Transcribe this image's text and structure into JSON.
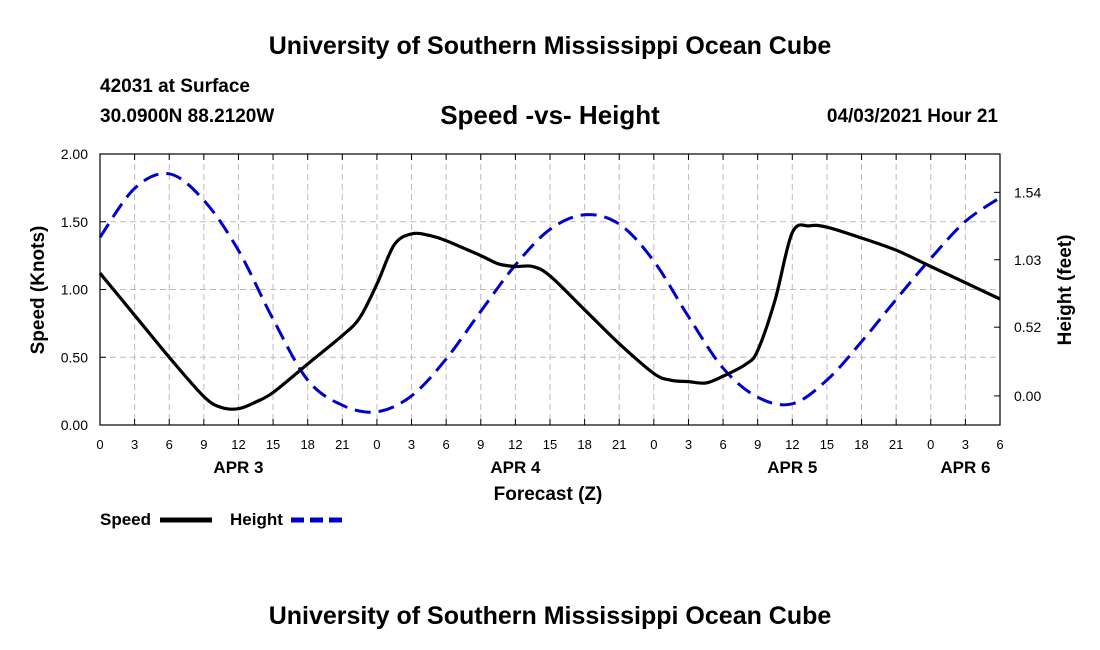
{
  "header": {
    "title": "University of Southern Mississippi Ocean Cube",
    "station": "42031 at Surface",
    "coords": "30.0900N  88.2120W",
    "chart_title": "Speed -vs- Height",
    "datetime": "04/03/2021 Hour 21"
  },
  "footer": {
    "title": "University of Southern Mississippi Ocean Cube"
  },
  "legend": {
    "speed": "Speed",
    "height": "Height"
  },
  "colors": {
    "speed": "#000000",
    "height": "#0000cc",
    "grid": "#bbbbbb"
  },
  "chart_data": {
    "type": "line",
    "title": "Speed -vs- Height",
    "xlabel": "Forecast (Z)",
    "ylabel": "Speed (Knots)",
    "ylabel2": "Height (feet)",
    "x_range": [
      0,
      78
    ],
    "ylim": [
      0,
      2.0
    ],
    "y2lim": [
      -0.22,
      1.83
    ],
    "y_ticks": [
      "0.00",
      "0.50",
      "1.00",
      "1.50",
      "2.00"
    ],
    "y2_ticks": [
      {
        "value": 0.0,
        "label": "0.00"
      },
      {
        "value": 0.52,
        "label": "0.52"
      },
      {
        "value": 1.03,
        "label": "1.03"
      },
      {
        "value": 1.54,
        "label": "1.54"
      }
    ],
    "x_ticks": [
      {
        "hour": 0,
        "label": "0"
      },
      {
        "hour": 3,
        "label": "3"
      },
      {
        "hour": 6,
        "label": "6"
      },
      {
        "hour": 9,
        "label": "9"
      },
      {
        "hour": 12,
        "label": "12"
      },
      {
        "hour": 15,
        "label": "15"
      },
      {
        "hour": 18,
        "label": "18"
      },
      {
        "hour": 21,
        "label": "21"
      },
      {
        "hour": 24,
        "label": "0"
      },
      {
        "hour": 27,
        "label": "3"
      },
      {
        "hour": 30,
        "label": "6"
      },
      {
        "hour": 33,
        "label": "9"
      },
      {
        "hour": 36,
        "label": "12"
      },
      {
        "hour": 39,
        "label": "15"
      },
      {
        "hour": 42,
        "label": "18"
      },
      {
        "hour": 45,
        "label": "21"
      },
      {
        "hour": 48,
        "label": "0"
      },
      {
        "hour": 51,
        "label": "3"
      },
      {
        "hour": 54,
        "label": "6"
      },
      {
        "hour": 57,
        "label": "9"
      },
      {
        "hour": 60,
        "label": "12"
      },
      {
        "hour": 63,
        "label": "15"
      },
      {
        "hour": 66,
        "label": "18"
      },
      {
        "hour": 69,
        "label": "21"
      },
      {
        "hour": 72,
        "label": "0"
      },
      {
        "hour": 75,
        "label": "3"
      },
      {
        "hour": 78,
        "label": "6"
      }
    ],
    "day_labels": [
      {
        "hour": 12,
        "label": "APR 3"
      },
      {
        "hour": 36,
        "label": "APR 4"
      },
      {
        "hour": 60,
        "label": "APR 5"
      },
      {
        "hour": 75,
        "label": "APR 6"
      }
    ],
    "series": [
      {
        "name": "Speed",
        "axis": "left",
        "style": "solid",
        "x": [
          0,
          3,
          6,
          9,
          10.5,
          12,
          13.5,
          15,
          18,
          21,
          22.5,
          24,
          25.5,
          27,
          28.5,
          30,
          33,
          34.5,
          36,
          37.5,
          39,
          42,
          45,
          48,
          49.5,
          51,
          52.5,
          54,
          56,
          57,
          58.5,
          60,
          61.5,
          63,
          66,
          69,
          72,
          75,
          78
        ],
        "values": [
          1.12,
          0.81,
          0.5,
          0.21,
          0.13,
          0.12,
          0.17,
          0.24,
          0.45,
          0.66,
          0.79,
          1.04,
          1.33,
          1.41,
          1.4,
          1.36,
          1.25,
          1.19,
          1.17,
          1.17,
          1.1,
          0.85,
          0.6,
          0.38,
          0.33,
          0.32,
          0.31,
          0.36,
          0.45,
          0.55,
          0.92,
          1.42,
          1.47,
          1.46,
          1.38,
          1.29,
          1.17,
          1.05,
          0.93
        ]
      },
      {
        "name": "Height",
        "axis": "right",
        "style": "dashed",
        "x": [
          0,
          3,
          6,
          9,
          12,
          15,
          18,
          21,
          24,
          27,
          30,
          33,
          36,
          39,
          42,
          45,
          48,
          51,
          54,
          57,
          60,
          63,
          66,
          69,
          72,
          75,
          78
        ],
        "values": [
          1.2,
          1.57,
          1.68,
          1.48,
          1.1,
          0.58,
          0.12,
          -0.07,
          -0.12,
          0.0,
          0.28,
          0.64,
          0.99,
          1.26,
          1.37,
          1.3,
          1.02,
          0.6,
          0.21,
          -0.01,
          -0.06,
          0.12,
          0.41,
          0.73,
          1.04,
          1.32,
          1.5
        ]
      }
    ]
  }
}
